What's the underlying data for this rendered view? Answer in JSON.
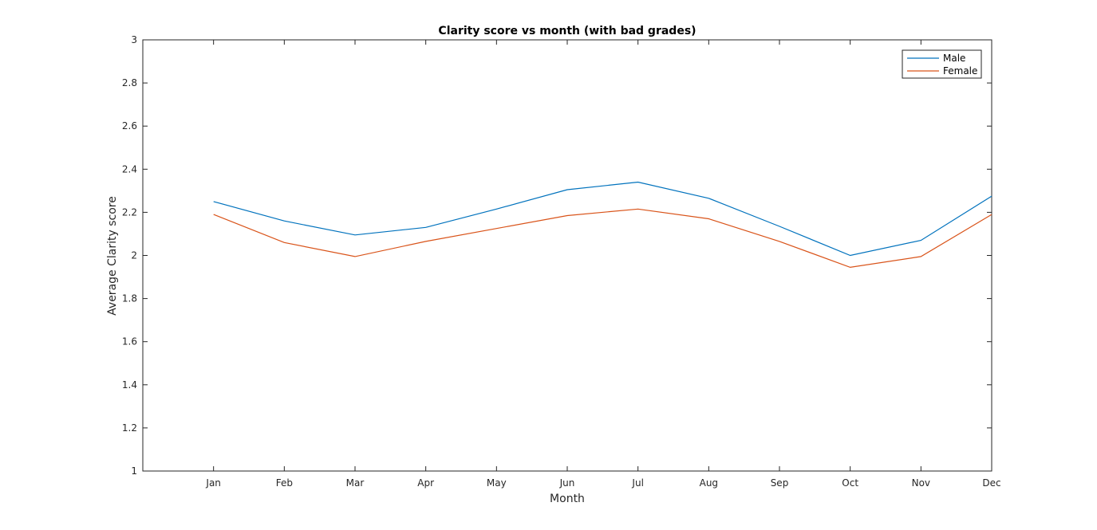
{
  "chart_data": {
    "type": "line",
    "title": "Clarity score vs month (with bad grades)",
    "xlabel": "Month",
    "ylabel": "Average Clarity score",
    "categories": [
      "Jan",
      "Feb",
      "Mar",
      "Apr",
      "May",
      "Jun",
      "Jul",
      "Aug",
      "Sep",
      "Oct",
      "Nov",
      "Dec"
    ],
    "xlim": [
      0,
      12
    ],
    "ylim": [
      1,
      3
    ],
    "yticks": [
      "1",
      "1.2",
      "1.4",
      "1.6",
      "1.8",
      "2",
      "2.2",
      "2.4",
      "2.6",
      "2.8",
      "3"
    ],
    "grid": false,
    "legend": "top-right",
    "series": [
      {
        "name": "Male",
        "color": "#0072BD",
        "values": [
          2.25,
          2.16,
          2.095,
          2.13,
          2.215,
          2.305,
          2.34,
          2.265,
          2.135,
          2.0,
          2.07,
          2.275
        ]
      },
      {
        "name": "Female",
        "color": "#D95319",
        "values": [
          2.19,
          2.06,
          1.995,
          2.065,
          2.125,
          2.185,
          2.215,
          2.17,
          2.065,
          1.945,
          1.995,
          2.19
        ]
      }
    ]
  }
}
